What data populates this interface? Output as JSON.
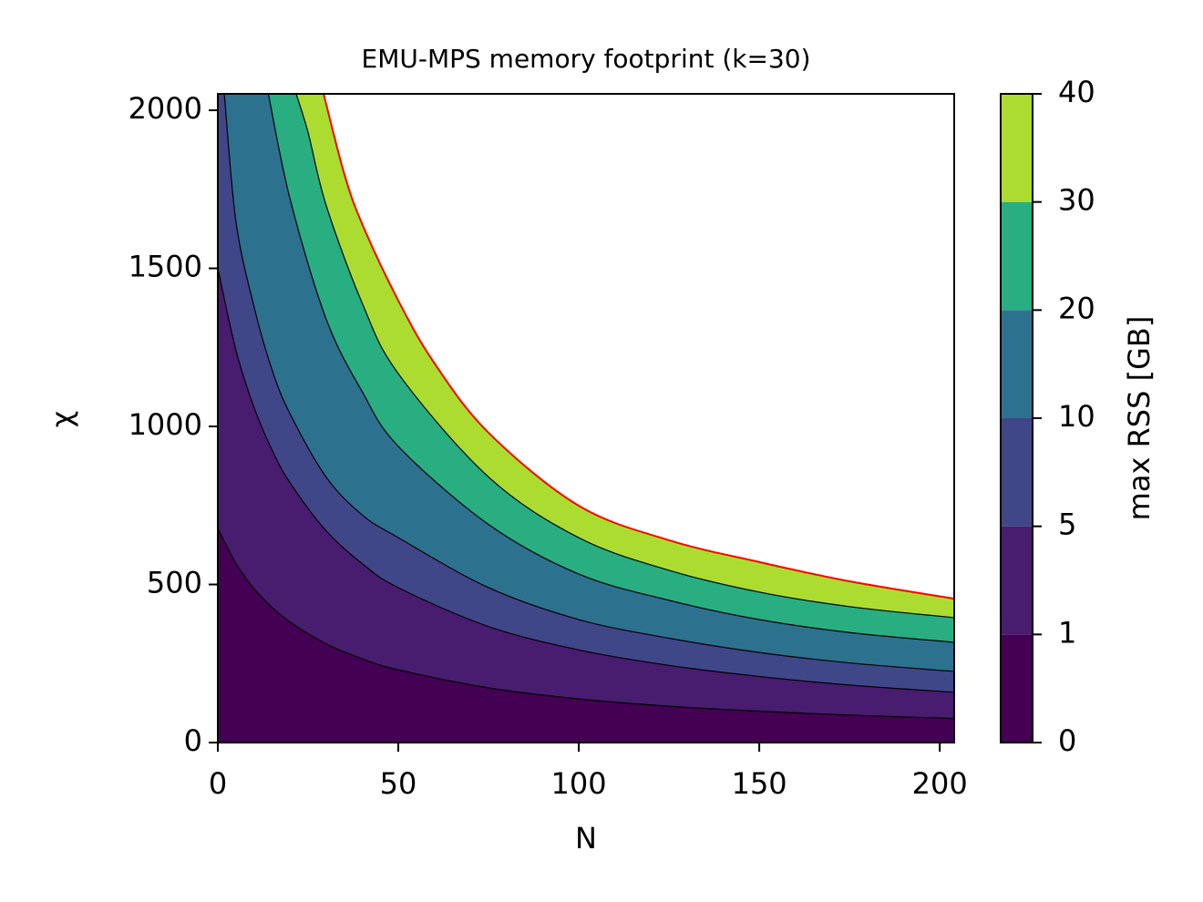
{
  "chart_data": {
    "type": "contour",
    "title": "EMU-MPS memory footprint (k=30)",
    "xlabel": "N",
    "ylabel": "χ",
    "colorbar_label": "max RSS [GB]",
    "xlim": [
      0,
      204
    ],
    "ylim": [
      0,
      2052
    ],
    "xticks": [
      0,
      50,
      100,
      150,
      200
    ],
    "yticks": [
      0,
      500,
      1000,
      1500,
      2000
    ],
    "levels": [
      0,
      1,
      5,
      10,
      20,
      30,
      40
    ],
    "colors": [
      "#440154",
      "#481c6e",
      "#3f4788",
      "#2c728e",
      "#28ae80",
      "#addc30"
    ],
    "contours": [
      {
        "level": 1,
        "color": "#000000",
        "x": [
          0,
          5,
          10,
          15,
          20,
          30,
          40,
          50,
          75,
          100,
          125,
          150,
          175,
          204
        ],
        "y": [
          677,
          567,
          487,
          428,
          381,
          312,
          265,
          230,
          173,
          138,
          115,
          99,
          87,
          76
        ]
      },
      {
        "level": 5,
        "color": "#000000",
        "x": [
          0,
          5,
          10,
          15,
          20,
          30,
          40,
          50,
          75,
          100,
          125,
          150,
          175,
          204
        ],
        "y": [
          1500,
          1242,
          1061,
          926,
          822,
          670,
          566,
          490,
          367,
          293,
          244,
          209,
          182,
          159
        ]
      },
      {
        "level": 10,
        "color": "#000000",
        "x": [
          1.8,
          5,
          10,
          15,
          20,
          30,
          40,
          50,
          75,
          100,
          125,
          150,
          175,
          204
        ],
        "y": [
          2052,
          1650,
          1380,
          1180,
          1040,
          840,
          720,
          648,
          490,
          389,
          330,
          285,
          252,
          225
        ]
      },
      {
        "level": 20,
        "color": "#000000",
        "x": [
          14,
          20,
          30,
          40,
          50,
          75,
          100,
          125,
          150,
          175,
          204
        ],
        "y": [
          2052,
          1720,
          1340,
          1110,
          937,
          690,
          533,
          450,
          389,
          348,
          317
        ]
      },
      {
        "level": 30,
        "color": "#000000",
        "x": [
          21.7,
          25,
          30,
          40,
          50,
          75,
          100,
          125,
          150,
          175,
          204
        ],
        "y": [
          2052,
          1930,
          1700,
          1390,
          1167,
          840,
          648,
          545,
          476,
          430,
          395
        ]
      },
      {
        "level": 40,
        "color": "#ff0000",
        "x": [
          29.3,
          35,
          40,
          50,
          60,
          75,
          100,
          125,
          150,
          175,
          204
        ],
        "y": [
          2052,
          1800,
          1640,
          1398,
          1200,
          980,
          749,
          640,
          571,
          510,
          455
        ]
      }
    ]
  }
}
